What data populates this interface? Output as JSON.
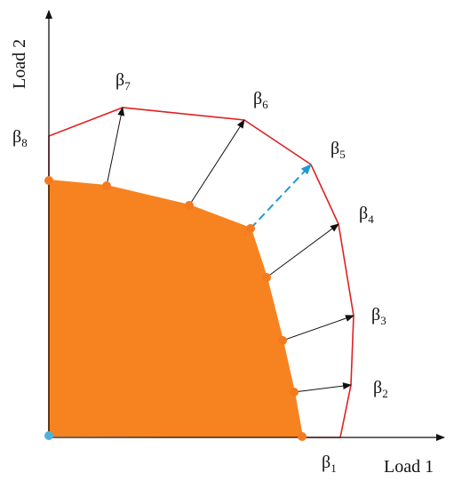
{
  "axes": {
    "x_label": "Load 1",
    "y_label": "Load 2"
  },
  "betas": [
    {
      "symbol": "β",
      "index": "1"
    },
    {
      "symbol": "β",
      "index": "2"
    },
    {
      "symbol": "β",
      "index": "3"
    },
    {
      "symbol": "β",
      "index": "4"
    },
    {
      "symbol": "β",
      "index": "5"
    },
    {
      "symbol": "β",
      "index": "6"
    },
    {
      "symbol": "β",
      "index": "7"
    },
    {
      "symbol": "β",
      "index": "8"
    }
  ]
}
